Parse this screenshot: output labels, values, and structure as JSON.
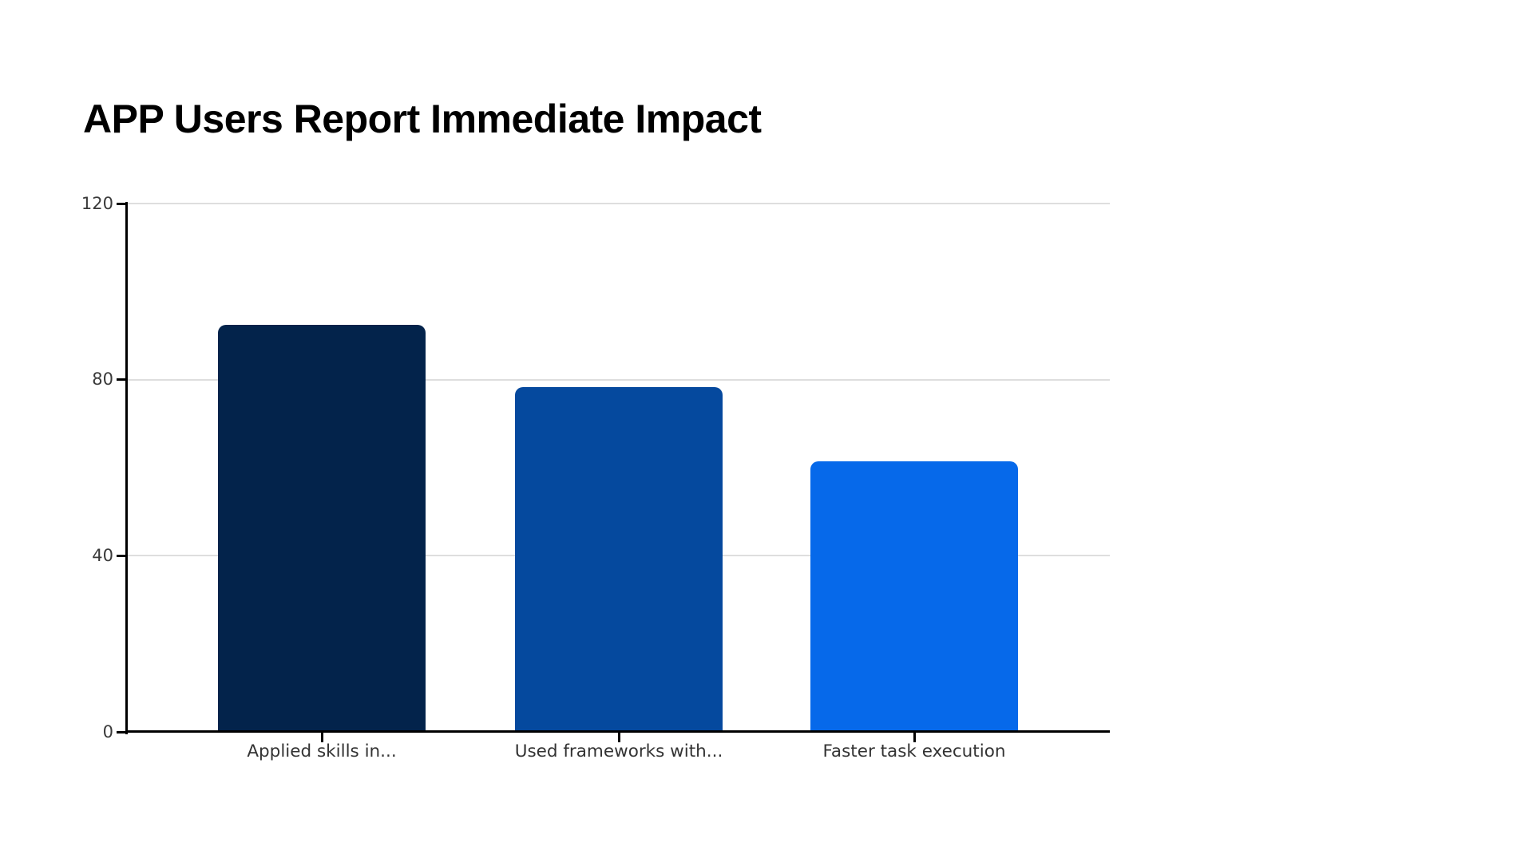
{
  "title": "APP Users Report Immediate Impact",
  "chart_data": {
    "type": "bar",
    "title": "APP Users Report Immediate Impact",
    "categories": [
      "Applied skills in...",
      "Used frameworks with...",
      "Faster task execution"
    ],
    "values": [
      92,
      78,
      61
    ],
    "bar_colors": [
      "#03234B",
      "#05499E",
      "#0669EA"
    ],
    "xlabel": "",
    "ylabel": "",
    "ylim": [
      0,
      120
    ],
    "yticks": [
      0,
      40,
      80,
      120
    ],
    "grid": "horizontal",
    "legend": "none",
    "gridline_color": "#dedede",
    "axis_color": "#000000",
    "tick_label_color": "#3a3a3a",
    "background_color": "#ffffff"
  }
}
